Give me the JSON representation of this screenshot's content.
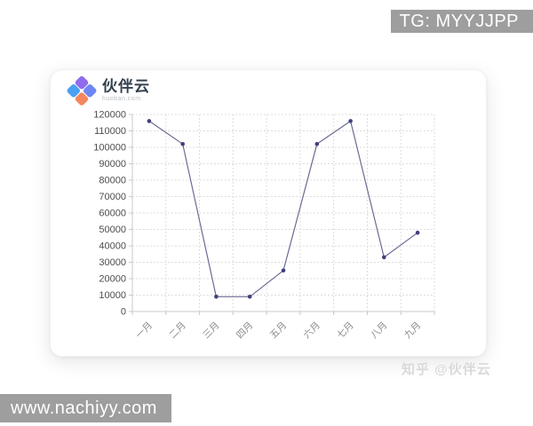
{
  "overlays": {
    "tg_badge": "TG: MYYJJPP",
    "site_badge": "www.nachiyy.com",
    "zhihu_watermark": "知乎 @伙伴云",
    "badge_bg": "#9e9e9e",
    "watermark_color": "#d9d9d9"
  },
  "logo": {
    "brand": "伙伴云",
    "brand_domain": "huoban.com",
    "icon": "four-diamond-logo",
    "icon_colors": [
      "#8f6bf0",
      "#6f86f5",
      "#4aa0f2",
      "#f2875f"
    ]
  },
  "chart_data": {
    "type": "line",
    "categories": [
      "一月",
      "二月",
      "三月",
      "四月",
      "五月",
      "六月",
      "七月",
      "八月",
      "九月"
    ],
    "values": [
      116000,
      102000,
      9000,
      9000,
      25000,
      102000,
      116000,
      33000,
      48000
    ],
    "title": "",
    "xlabel": "",
    "ylabel": "",
    "ylim": [
      0,
      120000
    ],
    "ytick_step": 10000,
    "grid": true,
    "grid_style": "dotted",
    "legend": false,
    "xtick_rotation": -45,
    "line_color": "#6b6b94",
    "marker_color": "#3f3f7d",
    "grid_color": "#dddddd",
    "axis_color": "#c9c9c9",
    "ytick_color": "#4d4d4d",
    "xtick_color": "#8a8a8a"
  }
}
